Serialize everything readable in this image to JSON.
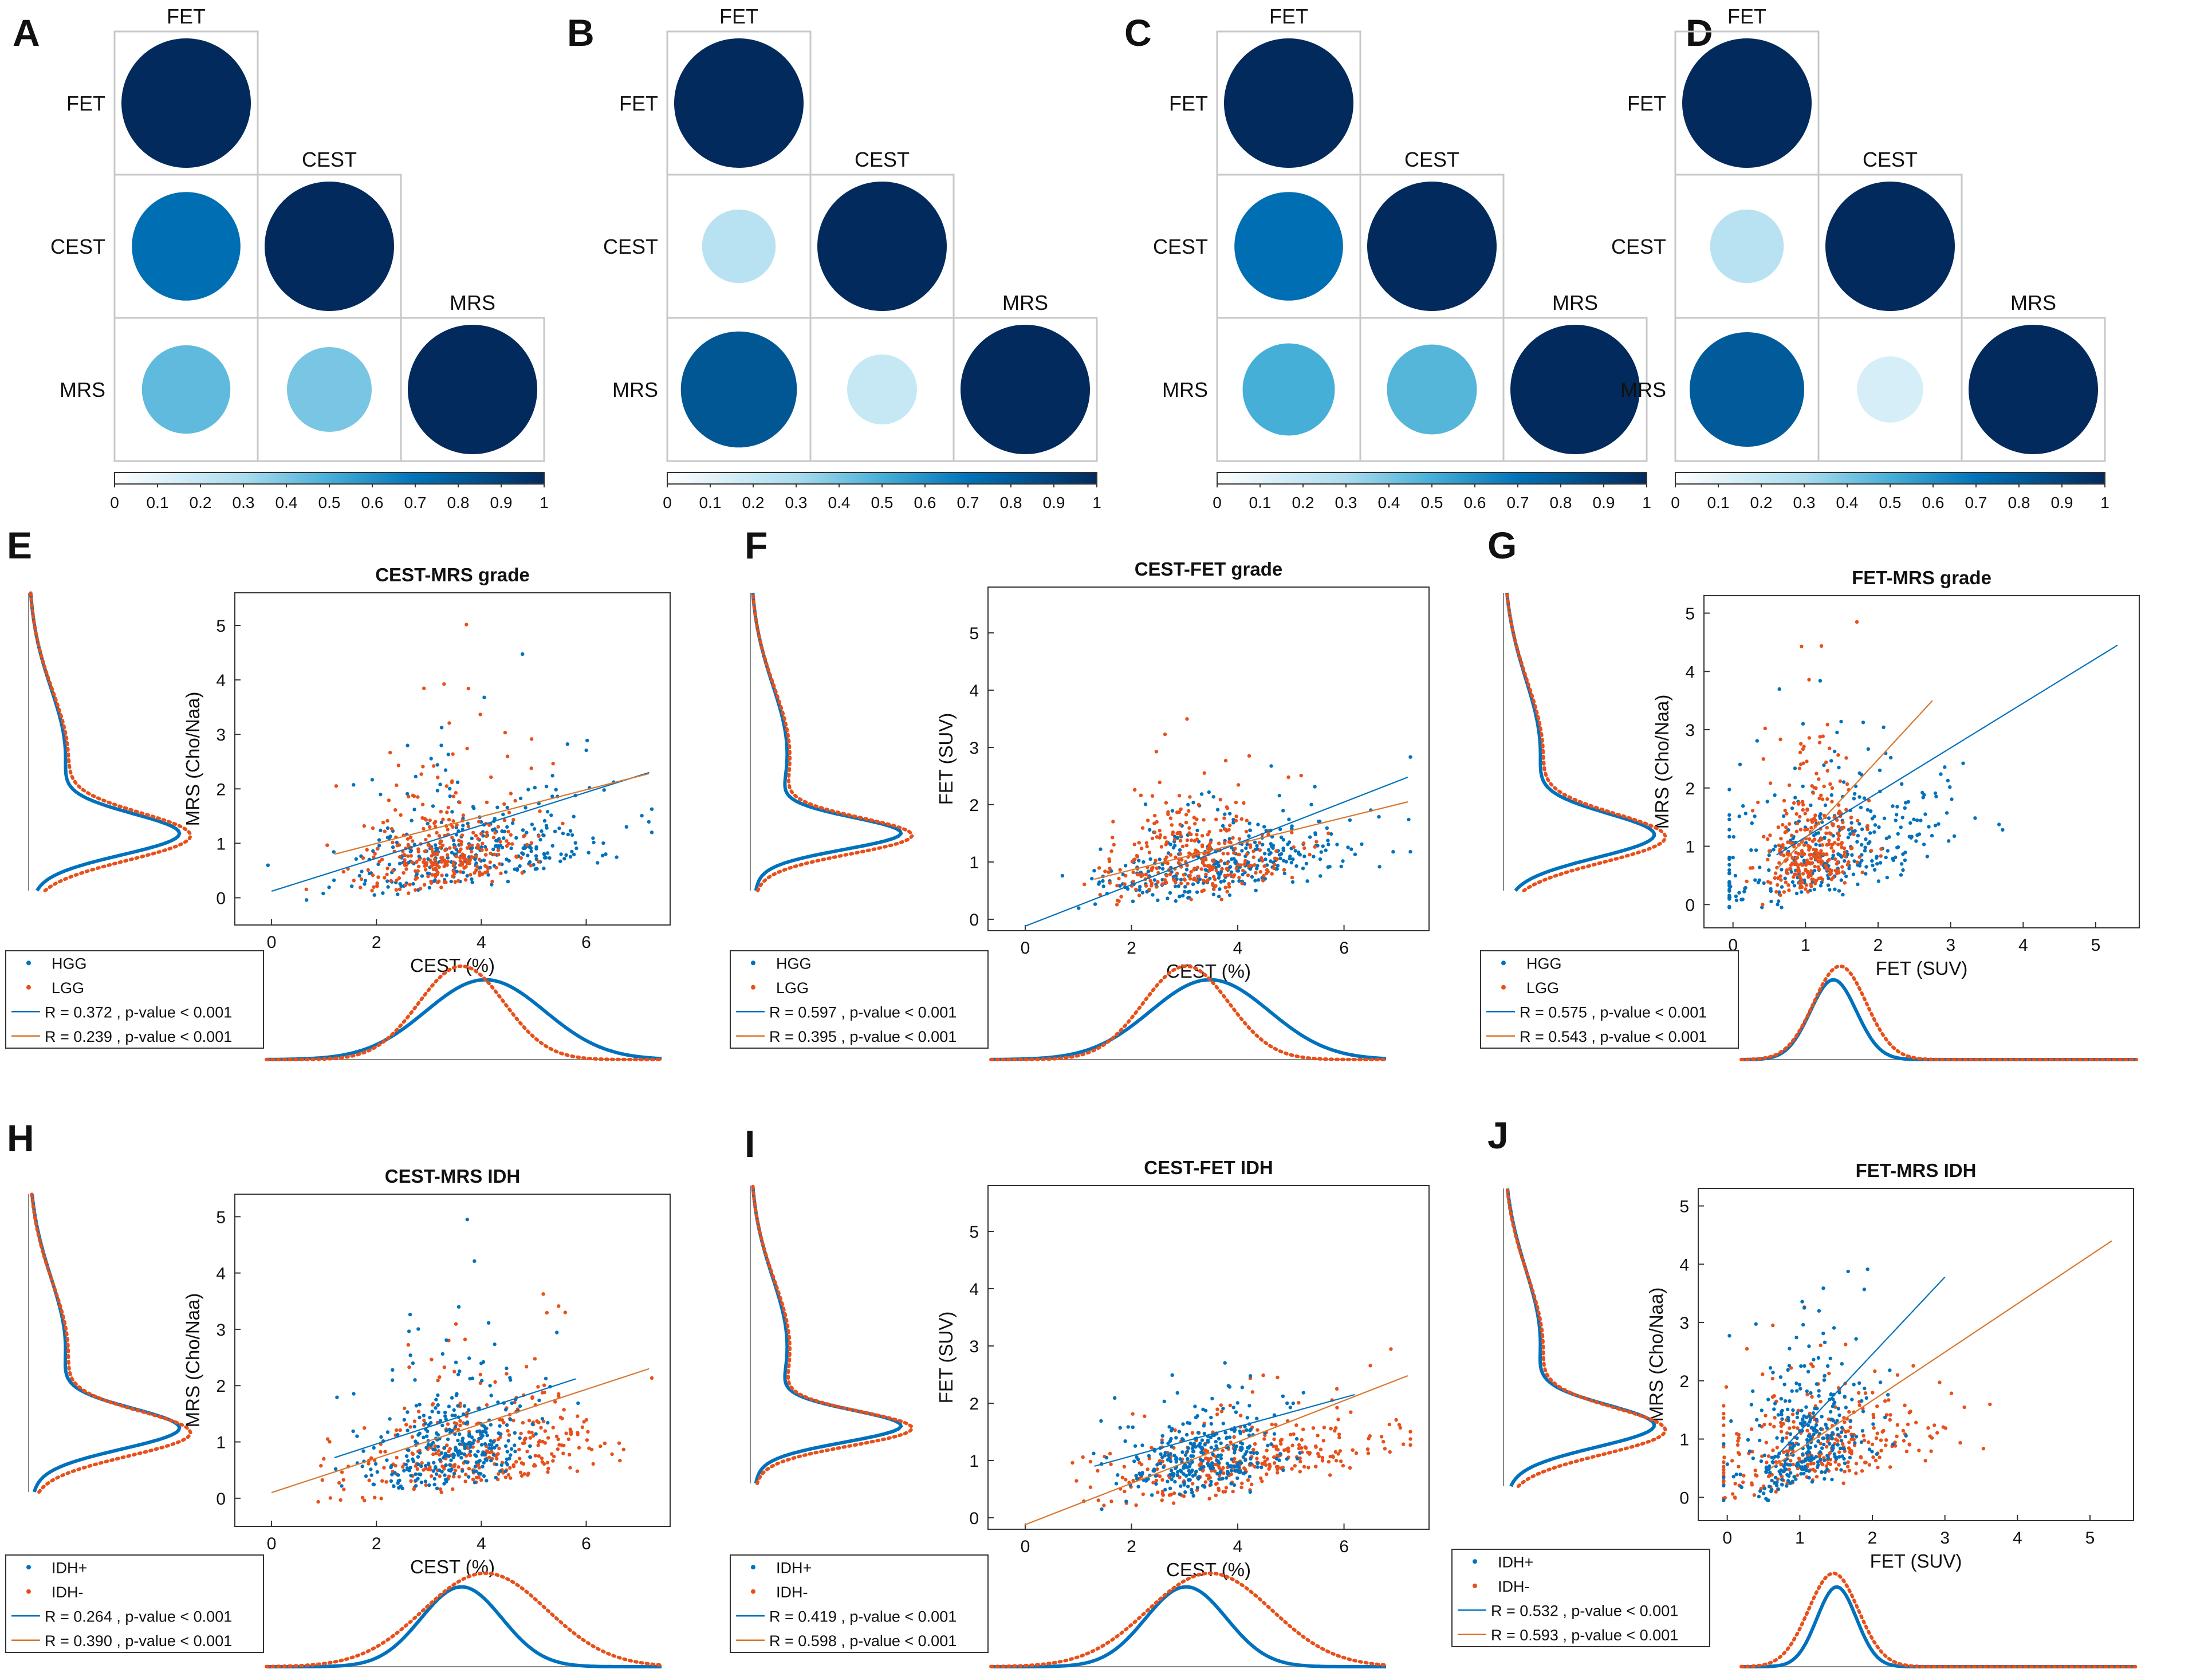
{
  "colors": {
    "blue": "#0072BD",
    "orange": "#E8501A",
    "navy": "#032a5c",
    "grid": "#c8c8c8"
  },
  "chart_data": [
    {
      "panel": "A",
      "type": "heatmap",
      "labels": [
        "FET",
        "CEST",
        "MRS"
      ],
      "matrix": [
        [
          1,
          null,
          null
        ],
        [
          0.72,
          1,
          null
        ],
        [
          0.45,
          0.4,
          1
        ]
      ],
      "colorbar_ticks": [
        "0",
        "0.1",
        "0.2",
        "0.3",
        "0.4",
        "0.5",
        "0.6",
        "0.7",
        "0.8",
        "0.9",
        "1"
      ]
    },
    {
      "panel": "B",
      "type": "heatmap",
      "labels": [
        "FET",
        "CEST",
        "MRS"
      ],
      "matrix": [
        [
          1,
          null,
          null
        ],
        [
          0.25,
          1,
          null
        ],
        [
          0.82,
          0.2,
          1
        ]
      ],
      "colorbar_ticks": [
        "0",
        "0.1",
        "0.2",
        "0.3",
        "0.4",
        "0.5",
        "0.6",
        "0.7",
        "0.8",
        "0.9",
        "1"
      ]
    },
    {
      "panel": "C",
      "type": "heatmap",
      "labels": [
        "FET",
        "CEST",
        "MRS"
      ],
      "matrix": [
        [
          1,
          null,
          null
        ],
        [
          0.72,
          1,
          null
        ],
        [
          0.5,
          0.47,
          1
        ]
      ],
      "colorbar_ticks": [
        "0",
        "0.1",
        "0.2",
        "0.3",
        "0.4",
        "0.5",
        "0.6",
        "0.7",
        "0.8",
        "0.9",
        "1"
      ]
    },
    {
      "panel": "D",
      "type": "heatmap",
      "labels": [
        "FET",
        "CEST",
        "MRS"
      ],
      "matrix": [
        [
          1,
          null,
          null
        ],
        [
          0.25,
          1,
          null
        ],
        [
          0.8,
          0.15,
          1
        ]
      ],
      "colorbar_ticks": [
        "0",
        "0.1",
        "0.2",
        "0.3",
        "0.4",
        "0.5",
        "0.6",
        "0.7",
        "0.8",
        "0.9",
        "1"
      ]
    },
    {
      "panel": "E",
      "type": "scatter",
      "title": "CEST-MRS grade",
      "xlabel": "CEST (%)",
      "ylabel": "MRS (Cho/Naa)",
      "xlim": [
        -0.7,
        7.6
      ],
      "ylim": [
        -0.5,
        5.6
      ],
      "xticks": [
        0,
        2,
        4,
        6
      ],
      "yticks": [
        0,
        1,
        2,
        3,
        4,
        5
      ],
      "legend": [
        "HGG",
        "LGG",
        "R = 0.372 , p-value < 0.001",
        "R = 0.239 , p-value < 0.001"
      ],
      "series": [
        {
          "name": "HGG",
          "mean_x": 3.9,
          "sd_x": 1.3,
          "y_med": 0.9,
          "y_sig": 0.55,
          "slope": 0.3,
          "fit_x": [
            0,
            7.2
          ],
          "fit_y": [
            0.12,
            2.3
          ]
        },
        {
          "name": "LGG",
          "mean_x": 3.3,
          "sd_x": 0.8,
          "y_med": 0.85,
          "y_sig": 0.6,
          "slope": 0.2,
          "fit_x": [
            1.2,
            7.2
          ],
          "fit_y": [
            0.8,
            2.28
          ]
        }
      ],
      "kde_side": {
        "blue_peak": 0.65,
        "orange_peak": 0.6,
        "blue_w": 0.42,
        "orange_w": 0.48
      },
      "kde_bottom": {
        "blue_peak": 3.9,
        "orange_peak": 3.4,
        "blue_w": 1.25,
        "orange_w": 0.9
      }
    },
    {
      "panel": "F",
      "type": "scatter",
      "title": "CEST-FET grade",
      "xlabel": "CEST (%)",
      "ylabel": "FET (SUV)",
      "xlim": [
        -0.7,
        7.6
      ],
      "ylim": [
        -0.2,
        5.8
      ],
      "xticks": [
        0,
        2,
        4,
        6
      ],
      "yticks": [
        0,
        1,
        2,
        3,
        4,
        5
      ],
      "legend": [
        "HGG",
        "LGG",
        "R = 0.597 , p-value < 0.001",
        "R = 0.395 , p-value < 0.001"
      ],
      "series": [
        {
          "name": "HGG",
          "mean_x": 3.9,
          "sd_x": 1.3,
          "y_med": 1.0,
          "y_sig": 0.35,
          "slope": 0.35,
          "fit_x": [
            0,
            7.2
          ],
          "fit_y": [
            -0.12,
            2.48
          ]
        },
        {
          "name": "LGG",
          "mean_x": 3.3,
          "sd_x": 0.8,
          "y_med": 1.05,
          "y_sig": 0.4,
          "slope": 0.15,
          "fit_x": [
            1.3,
            7.2
          ],
          "fit_y": [
            0.7,
            2.05
          ]
        }
      ],
      "kde_side": {
        "blue_peak": 0.95,
        "orange_peak": 0.9,
        "blue_w": 0.32,
        "orange_w": 0.36
      },
      "kde_bottom": {
        "blue_peak": 3.9,
        "orange_peak": 3.4,
        "blue_w": 1.25,
        "orange_w": 0.9
      }
    },
    {
      "panel": "G",
      "type": "scatter",
      "title": "FET-MRS grade",
      "xlabel": "FET (SUV)",
      "ylabel": "MRS (Cho/Naa)",
      "xlim": [
        -0.4,
        5.6
      ],
      "ylim": [
        -0.4,
        5.3
      ],
      "xticks": [
        0,
        1,
        2,
        3,
        4,
        5
      ],
      "yticks": [
        0,
        1,
        2,
        3,
        4,
        5
      ],
      "legend": [
        "HGG",
        "LGG",
        "R = 0.575 , p-value < 0.001",
        "R = 0.543 , p-value < 0.001"
      ],
      "series": [
        {
          "name": "HGG",
          "mean_x": 1.4,
          "sd_x": 0.9,
          "y_med": 0.9,
          "y_sig": 0.6,
          "slope": 0.7,
          "fit_x": [
            0.6,
            5.3
          ],
          "fit_y": [
            0.85,
            4.45
          ]
        },
        {
          "name": "LGG",
          "mean_x": 1.05,
          "sd_x": 0.35,
          "y_med": 0.9,
          "y_sig": 0.6,
          "slope": 0.8,
          "fit_x": [
            0.6,
            2.75
          ],
          "fit_y": [
            0.6,
            3.5
          ]
        }
      ],
      "kde_side": {
        "blue_peak": 0.65,
        "orange_peak": 0.6,
        "blue_w": 0.42,
        "orange_w": 0.46
      },
      "kde_bottom": {
        "blue_peak": 1.0,
        "orange_peak": 1.1,
        "blue_w": 0.35,
        "orange_w": 0.4
      }
    },
    {
      "panel": "H",
      "type": "scatter",
      "title": "CEST-MRS IDH",
      "xlabel": "CEST (%)",
      "ylabel": "MRS (Cho/Naa)",
      "xlim": [
        -0.7,
        7.6
      ],
      "ylim": [
        -0.5,
        5.4
      ],
      "xticks": [
        0,
        2,
        4,
        6
      ],
      "yticks": [
        0,
        1,
        2,
        3,
        4,
        5
      ],
      "legend": [
        "IDH+",
        "IDH-",
        "R = 0.264 , p-value < 0.001",
        "R = 0.390 , p-value < 0.001"
      ],
      "series": [
        {
          "name": "IDH+",
          "mean_x": 3.4,
          "sd_x": 0.8,
          "y_med": 0.9,
          "y_sig": 0.6,
          "slope": 0.25,
          "fit_x": [
            1.2,
            5.8
          ],
          "fit_y": [
            0.72,
            2.12
          ]
        },
        {
          "name": "IDH-",
          "mean_x": 4.0,
          "sd_x": 1.3,
          "y_med": 0.85,
          "y_sig": 0.55,
          "slope": 0.3,
          "fit_x": [
            0,
            7.2
          ],
          "fit_y": [
            0.1,
            2.3
          ]
        }
      ],
      "kde_side": {
        "blue_peak": 0.75,
        "orange_peak": 0.65,
        "blue_w": 0.4,
        "orange_w": 0.44
      },
      "kde_bottom": {
        "blue_peak": 3.4,
        "orange_peak": 3.9,
        "blue_w": 0.85,
        "orange_w": 1.3
      }
    },
    {
      "panel": "I",
      "type": "scatter",
      "title": "CEST-FET IDH",
      "xlabel": "CEST (%)",
      "ylabel": "FET (SUV)",
      "xlim": [
        -0.7,
        7.6
      ],
      "ylim": [
        -0.2,
        5.8
      ],
      "xticks": [
        0,
        2,
        4,
        6
      ],
      "yticks": [
        0,
        1,
        2,
        3,
        4,
        5
      ],
      "legend": [
        "IDH+",
        "IDH-",
        "R = 0.419 , p-value < 0.001",
        "R = 0.598 , p-value < 0.001"
      ],
      "series": [
        {
          "name": "IDH+",
          "mean_x": 3.4,
          "sd_x": 0.8,
          "y_med": 1.05,
          "y_sig": 0.35,
          "slope": 0.25,
          "fit_x": [
            1.3,
            6.2
          ],
          "fit_y": [
            0.9,
            2.15
          ]
        },
        {
          "name": "IDH-",
          "mean_x": 4.0,
          "sd_x": 1.3,
          "y_med": 1.0,
          "y_sig": 0.35,
          "slope": 0.35,
          "fit_x": [
            0,
            7.2
          ],
          "fit_y": [
            -0.12,
            2.48
          ]
        }
      ],
      "kde_side": {
        "blue_peak": 0.95,
        "orange_peak": 0.9,
        "blue_w": 0.32,
        "orange_w": 0.34
      },
      "kde_bottom": {
        "blue_peak": 3.4,
        "orange_peak": 3.9,
        "blue_w": 0.85,
        "orange_w": 1.3
      }
    },
    {
      "panel": "J",
      "type": "scatter",
      "title": "FET-MRS IDH",
      "xlabel": "FET (SUV)",
      "ylabel": "MRS (Cho/Naa)",
      "xlim": [
        -0.4,
        5.6
      ],
      "ylim": [
        -0.4,
        5.3
      ],
      "xticks": [
        0,
        1,
        2,
        3,
        4,
        5
      ],
      "yticks": [
        0,
        1,
        2,
        3,
        4,
        5
      ],
      "legend": [
        "IDH+",
        "IDH-",
        "R = 0.532 , p-value < 0.001",
        "R = 0.593 , p-value < 0.001"
      ],
      "series": [
        {
          "name": "IDH+",
          "mean_x": 1.1,
          "sd_x": 0.45,
          "y_med": 0.9,
          "y_sig": 0.6,
          "slope": 1.0,
          "fit_x": [
            0.6,
            3.0
          ],
          "fit_y": [
            0.6,
            3.78
          ]
        },
        {
          "name": "IDH-",
          "mean_x": 1.3,
          "sd_x": 0.8,
          "y_med": 0.85,
          "y_sig": 0.55,
          "slope": 0.6,
          "fit_x": [
            0.6,
            5.3
          ],
          "fit_y": [
            0.5,
            4.4
          ]
        }
      ],
      "kde_side": {
        "blue_peak": 0.75,
        "orange_peak": 0.65,
        "blue_w": 0.4,
        "orange_w": 0.44
      },
      "kde_bottom": {
        "blue_peak": 1.05,
        "orange_peak": 1.0,
        "blue_w": 0.3,
        "orange_w": 0.38
      }
    }
  ]
}
